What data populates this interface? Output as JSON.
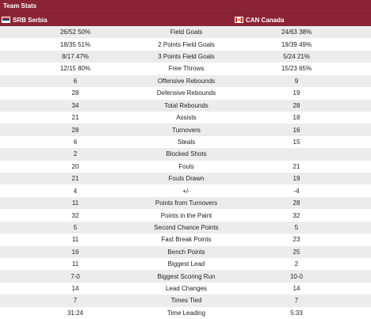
{
  "header": {
    "title": "Team Stats"
  },
  "teams": {
    "home": {
      "code_name": "SRB Serbia",
      "flag": "serbia-flag"
    },
    "away": {
      "code_name": "CAN Canada",
      "flag": "canada-flag"
    }
  },
  "stats": [
    {
      "label": "Field Goals",
      "home": "26/52 50%",
      "away": "24/63 38%"
    },
    {
      "label": "2 Points Field Goals",
      "home": "18/35 51%",
      "away": "19/39 49%"
    },
    {
      "label": "3 Points Field Goals",
      "home": "8/17 47%",
      "away": "5/24 21%"
    },
    {
      "label": "Free Throws",
      "home": "12/15 80%",
      "away": "15/23 65%"
    },
    {
      "label": "Offensive Rebounds",
      "home": "6",
      "away": "9"
    },
    {
      "label": "Defensive Rebounds",
      "home": "28",
      "away": "19"
    },
    {
      "label": "Total Rebounds",
      "home": "34",
      "away": "28"
    },
    {
      "label": "Assists",
      "home": "21",
      "away": "18"
    },
    {
      "label": "Turnovers",
      "home": "28",
      "away": "16"
    },
    {
      "label": "Steals",
      "home": "6",
      "away": "15"
    },
    {
      "label": "Blocked Shots",
      "home": "2",
      "away": ""
    },
    {
      "label": "Fouls",
      "home": "20",
      "away": "21"
    },
    {
      "label": "Fouls Drawn",
      "home": "21",
      "away": "19"
    },
    {
      "label": "+/-",
      "home": "4",
      "away": "-4"
    },
    {
      "label": "Points from Turnovers",
      "home": "11",
      "away": "28"
    },
    {
      "label": "Points in the Paint",
      "home": "32",
      "away": "32"
    },
    {
      "label": "Second Chance Points",
      "home": "5",
      "away": "5"
    },
    {
      "label": "Fast Break Points",
      "home": "11",
      "away": "23"
    },
    {
      "label": "Bench Points",
      "home": "16",
      "away": "25"
    },
    {
      "label": "Biggest Lead",
      "home": "11",
      "away": "2"
    },
    {
      "label": "Biggest Scoring Run",
      "home": "7-0",
      "away": "10-0"
    },
    {
      "label": "Lead Changes",
      "home": "14",
      "away": "14"
    },
    {
      "label": "Times Tied",
      "home": "7",
      "away": "7"
    },
    {
      "label": "Time Leading",
      "home": "31:24",
      "away": "5:33"
    }
  ]
}
